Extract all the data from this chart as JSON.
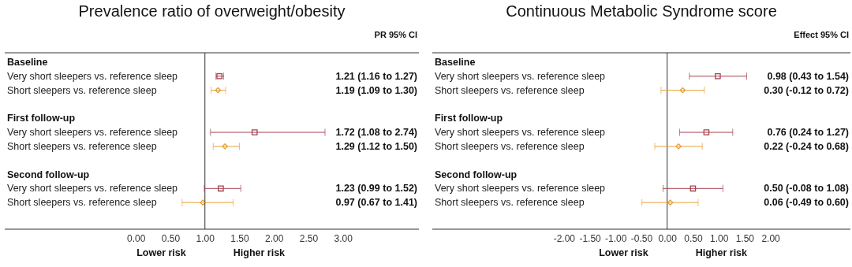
{
  "chart_data": [
    {
      "type": "scatter",
      "orientation": "horizontal",
      "title": "Prevalence ratio of overweight/obesity",
      "categories": [
        "Baseline",
        "Very short sleepers vs. reference sleep",
        "Short sleepers vs. reference sleep",
        "First follow-up",
        "Very short sleepers vs. reference sleep",
        "Short sleepers vs. reference sleep",
        "Second follow-up",
        "Very short sleepers vs. reference sleep",
        "Short sleepers vs. reference sleep"
      ],
      "series": [
        {
          "color": "#a3434f",
          "marker": "square",
          "values": [
            null,
            1.21,
            null,
            null,
            1.72,
            null,
            null,
            1.23,
            null
          ],
          "errors": [
            null,
            [
              1.16,
              1.27
            ],
            null,
            null,
            [
              1.08,
              2.74
            ],
            null,
            null,
            [
              0.99,
              1.52
            ],
            null
          ]
        },
        {
          "color": "#e6a23c",
          "marker": "diamond",
          "values": [
            null,
            null,
            1.19,
            null,
            null,
            1.29,
            null,
            null,
            0.97
          ],
          "errors": [
            null,
            null,
            [
              1.09,
              1.3
            ],
            null,
            null,
            [
              1.12,
              1.5
            ],
            null,
            null,
            [
              0.67,
              1.41
            ]
          ]
        }
      ],
      "xlim": [
        -1.9,
        4.1
      ],
      "xticks": [
        {
          "value": 0,
          "label": "0.00"
        },
        {
          "value": 0.5,
          "label": "0.50"
        },
        {
          "value": 1,
          "label": "1.00"
        },
        {
          "value": 1.5,
          "label": "1.50"
        },
        {
          "value": 2,
          "label": "2.00"
        },
        {
          "value": 2.5,
          "label": "2.50"
        },
        {
          "value": 3,
          "label": "3.00"
        }
      ],
      "ref_lines": [
        {
          "axis": "x",
          "value": 1
        }
      ],
      "annotations": [
        "PR 95% CI",
        "Lower risk",
        "Higher risk",
        "1.21 (1.16 to 1.27)",
        "1.19 (1.09 to 1.30)",
        "1.72 (1.08 to 2.74)",
        "1.29 (1.12 to 1.50)",
        "1.23 (0.99 to 1.52)",
        "0.97 (0.67 to 1.41)"
      ],
      "legend": false,
      "grid": false
    },
    {
      "type": "scatter",
      "orientation": "horizontal",
      "title": "Continuous Metabolic Syndrome score",
      "categories": [
        "Baseline",
        "Very short sleepers vs. reference sleep",
        "Short sleepers vs. reference sleep",
        "First follow-up",
        "Very short sleepers vs. reference sleep",
        "Short sleepers vs. reference sleep",
        "Second follow-up",
        "Very short sleepers vs. reference sleep",
        "Short sleepers vs. reference sleep"
      ],
      "series": [
        {
          "color": "#a3434f",
          "marker": "square",
          "values": [
            null,
            0.98,
            null,
            null,
            0.76,
            null,
            null,
            0.5,
            null
          ],
          "errors": [
            null,
            [
              0.43,
              1.54
            ],
            null,
            null,
            [
              0.24,
              1.27
            ],
            null,
            null,
            [
              -0.08,
              1.08
            ],
            null
          ]
        },
        {
          "color": "#e6a23c",
          "marker": "diamond",
          "values": [
            null,
            null,
            0.3,
            null,
            null,
            0.22,
            null,
            null,
            0.06
          ],
          "errors": [
            null,
            null,
            [
              -0.12,
              0.72
            ],
            null,
            null,
            [
              -0.24,
              0.68
            ],
            null,
            null,
            [
              -0.49,
              0.6
            ]
          ]
        }
      ],
      "xlim": [
        -4.55,
        3.55
      ],
      "xticks": [
        {
          "value": -2,
          "label": "-2.00"
        },
        {
          "value": -1.5,
          "label": "-1.50"
        },
        {
          "value": -1,
          "label": "-1.00"
        },
        {
          "value": -0.5,
          "label": "-0.50"
        },
        {
          "value": 0,
          "label": "0.00"
        },
        {
          "value": 0.5,
          "label": "0.50"
        },
        {
          "value": 1,
          "label": "1.00"
        },
        {
          "value": 1.5,
          "label": "1.50"
        },
        {
          "value": 2,
          "label": "2.00"
        }
      ],
      "ref_lines": [
        {
          "axis": "x",
          "value": 0
        }
      ],
      "annotations": [
        "Effect 95% CI",
        "Lower risk",
        "Higher risk",
        "0.98 (0.43 to 1.54)",
        "0.30 (-0.12 to 0.72)",
        "0.76 (0.24 to 1.27)",
        "0.22 (-0.24 to 0.68)",
        "0.50 (-0.08 to 1.08)",
        "0.06 (-0.49 to 0.60)"
      ],
      "legend": false,
      "grid": false
    }
  ]
}
